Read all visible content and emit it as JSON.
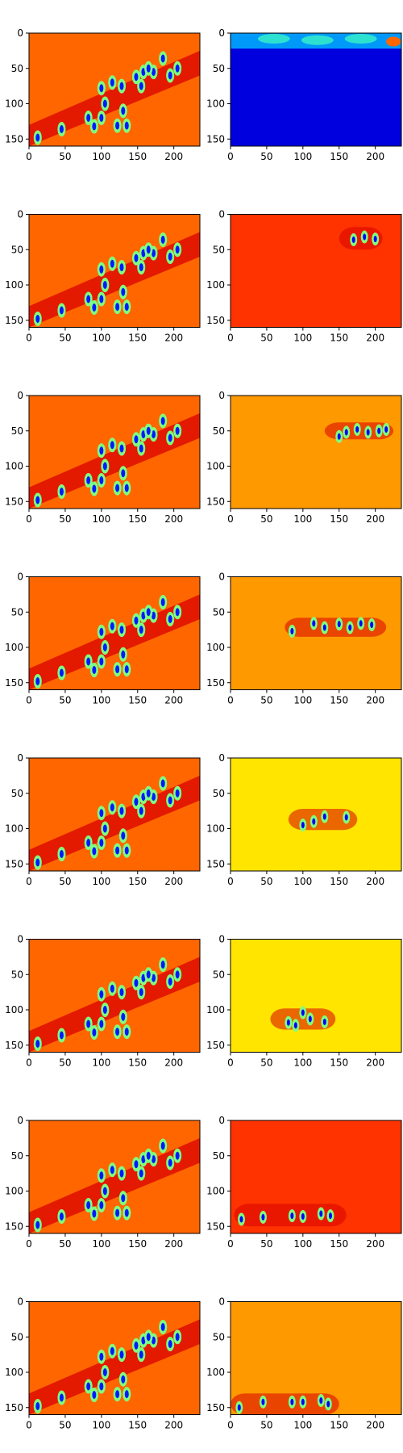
{
  "chart_data": {
    "type": "heatmap",
    "rows": 8,
    "cols": 2,
    "colormap": "jet",
    "colormap_stops": [
      "#00007f",
      "#0000ff",
      "#00ffff",
      "#ffff00",
      "#ff0000",
      "#7f0000"
    ],
    "xlim": [
      0,
      236
    ],
    "ylim": [
      160,
      0
    ],
    "x_ticks": [
      "0",
      "50",
      "100",
      "150",
      "200"
    ],
    "x_tick_values": [
      0,
      50,
      100,
      150,
      200
    ],
    "y_ticks": [
      "0",
      "50",
      "100",
      "150"
    ],
    "y_tick_values": [
      0,
      50,
      100,
      150
    ],
    "panels": [
      {
        "row": 0,
        "col": 0,
        "content": "full-scene",
        "base_level": 0.72
      },
      {
        "row": 0,
        "col": 1,
        "content": "top-band",
        "base_level": 0.15,
        "band_y": [
          0,
          22
        ],
        "band_x": [
          0,
          236
        ],
        "band_level": 0.35
      },
      {
        "row": 1,
        "col": 0,
        "content": "full-scene",
        "base_level": 0.72
      },
      {
        "row": 1,
        "col": 1,
        "content": "band",
        "base_level": 0.76,
        "band_y": [
          18,
          50
        ],
        "band_x": [
          150,
          210
        ]
      },
      {
        "row": 2,
        "col": 0,
        "content": "full-scene",
        "base_level": 0.72
      },
      {
        "row": 2,
        "col": 1,
        "content": "band",
        "base_level": 0.68,
        "band_y": [
          38,
          62
        ],
        "band_x": [
          130,
          225
        ]
      },
      {
        "row": 3,
        "col": 0,
        "content": "full-scene",
        "base_level": 0.72
      },
      {
        "row": 3,
        "col": 1,
        "content": "band",
        "base_level": 0.68,
        "band_y": [
          58,
          85
        ],
        "band_x": [
          75,
          215
        ]
      },
      {
        "row": 4,
        "col": 0,
        "content": "full-scene",
        "base_level": 0.72
      },
      {
        "row": 4,
        "col": 1,
        "content": "band",
        "base_level": 0.62,
        "band_y": [
          72,
          102
        ],
        "band_x": [
          80,
          175
        ]
      },
      {
        "row": 5,
        "col": 0,
        "content": "full-scene",
        "base_level": 0.72
      },
      {
        "row": 5,
        "col": 1,
        "content": "band",
        "base_level": 0.62,
        "band_y": [
          98,
          128
        ],
        "band_x": [
          55,
          145
        ]
      },
      {
        "row": 6,
        "col": 0,
        "content": "full-scene",
        "base_level": 0.72
      },
      {
        "row": 6,
        "col": 1,
        "content": "band",
        "base_level": 0.76,
        "band_y": [
          118,
          150
        ],
        "band_x": [
          5,
          160
        ]
      },
      {
        "row": 7,
        "col": 0,
        "content": "full-scene",
        "base_level": 0.72
      },
      {
        "row": 7,
        "col": 1,
        "content": "band",
        "base_level": 0.68,
        "band_y": [
          130,
          160
        ],
        "band_x": [
          0,
          150
        ]
      }
    ],
    "scene_blobs": [
      {
        "x": 12,
        "y": 148
      },
      {
        "x": 45,
        "y": 136
      },
      {
        "x": 82,
        "y": 120
      },
      {
        "x": 90,
        "y": 132
      },
      {
        "x": 100,
        "y": 120
      },
      {
        "x": 122,
        "y": 131
      },
      {
        "x": 135,
        "y": 131
      },
      {
        "x": 130,
        "y": 110
      },
      {
        "x": 105,
        "y": 100
      },
      {
        "x": 100,
        "y": 78
      },
      {
        "x": 115,
        "y": 70
      },
      {
        "x": 128,
        "y": 75
      },
      {
        "x": 148,
        "y": 62
      },
      {
        "x": 158,
        "y": 55
      },
      {
        "x": 172,
        "y": 55
      },
      {
        "x": 185,
        "y": 36
      },
      {
        "x": 165,
        "y": 50
      },
      {
        "x": 205,
        "y": 50
      },
      {
        "x": 195,
        "y": 60
      },
      {
        "x": 155,
        "y": 75
      }
    ],
    "band_blobs": [
      [
        {
          "x": 225,
          "y": 12
        },
        {
          "x": 60,
          "y": 8
        },
        {
          "x": 120,
          "y": 10
        },
        {
          "x": 180,
          "y": 8
        }
      ],
      [
        {
          "x": 185,
          "y": 32
        },
        {
          "x": 170,
          "y": 36
        },
        {
          "x": 200,
          "y": 35
        }
      ],
      [
        {
          "x": 160,
          "y": 52
        },
        {
          "x": 175,
          "y": 48
        },
        {
          "x": 190,
          "y": 52
        },
        {
          "x": 205,
          "y": 50
        },
        {
          "x": 150,
          "y": 58
        },
        {
          "x": 215,
          "y": 48
        }
      ],
      [
        {
          "x": 85,
          "y": 77
        },
        {
          "x": 115,
          "y": 66
        },
        {
          "x": 130,
          "y": 72
        },
        {
          "x": 150,
          "y": 67
        },
        {
          "x": 165,
          "y": 72
        },
        {
          "x": 180,
          "y": 66
        },
        {
          "x": 195,
          "y": 68
        }
      ],
      [
        {
          "x": 100,
          "y": 95
        },
        {
          "x": 130,
          "y": 83
        },
        {
          "x": 160,
          "y": 84
        },
        {
          "x": 115,
          "y": 90
        }
      ],
      [
        {
          "x": 80,
          "y": 118
        },
        {
          "x": 100,
          "y": 104
        },
        {
          "x": 130,
          "y": 117
        },
        {
          "x": 90,
          "y": 122
        },
        {
          "x": 110,
          "y": 113
        }
      ],
      [
        {
          "x": 45,
          "y": 137
        },
        {
          "x": 85,
          "y": 135
        },
        {
          "x": 100,
          "y": 136
        },
        {
          "x": 125,
          "y": 132
        },
        {
          "x": 138,
          "y": 135
        },
        {
          "x": 15,
          "y": 140
        }
      ],
      [
        {
          "x": 12,
          "y": 150
        },
        {
          "x": 45,
          "y": 142
        },
        {
          "x": 85,
          "y": 142
        },
        {
          "x": 100,
          "y": 142
        },
        {
          "x": 135,
          "y": 145
        },
        {
          "x": 125,
          "y": 140
        }
      ]
    ]
  }
}
